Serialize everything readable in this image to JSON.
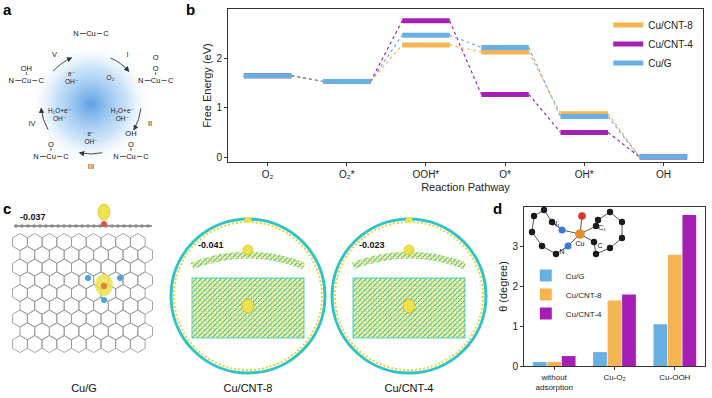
{
  "chart_data": [
    {
      "title": "b",
      "type": "line",
      "line_style": "dotted",
      "categories": [
        "O₂",
        "O₂*",
        "OOH*",
        "O*",
        "OH*",
        "OH"
      ],
      "series": [
        {
          "name": "Cu/CNT-8",
          "color": "#f5b452",
          "values": [
            1.65,
            1.53,
            2.27,
            2.13,
            0.88,
            0
          ]
        },
        {
          "name": "Cu/CNT-4",
          "color": "#a61fb5",
          "values": [
            1.65,
            1.53,
            2.76,
            1.27,
            0.5,
            0
          ]
        },
        {
          "name": "Cu/G",
          "color": "#68b0e4",
          "values": [
            1.65,
            1.53,
            2.47,
            2.22,
            0.82,
            0
          ]
        }
      ],
      "x_label": "Reaction Pathway",
      "y_label": "Free Energy (eV)",
      "ylim": [
        -0.1,
        3.0
      ],
      "yticks": [
        0,
        1,
        2
      ],
      "legend": "top right",
      "grid": false
    },
    {
      "title": "d",
      "type": "bar",
      "categories": [
        "without adsorption",
        "Cu-O₂",
        "Cu-OOH"
      ],
      "series": [
        {
          "name": "Cu/G",
          "color": "#68b0e4",
          "values": [
            0.1,
            0.35,
            1.05
          ]
        },
        {
          "name": "Cu/CNT-8",
          "color": "#f5b452",
          "values": [
            0.1,
            1.65,
            2.8
          ]
        },
        {
          "name": "Cu/CNT-4",
          "color": "#a61fb5",
          "values": [
            0.25,
            1.8,
            3.8
          ]
        }
      ],
      "y_label": "θ (degree)",
      "ylim": [
        0,
        4
      ],
      "yticks": [
        0,
        1,
        2,
        3
      ],
      "legend": "middle left",
      "grid": false
    }
  ],
  "diagrams": {
    "a": {
      "title": "a",
      "nodes": [
        {
          "atoms": [
            "N",
            "Cu",
            "C"
          ]
        },
        {
          "atoms": [
            "N",
            "Cu",
            "C"
          ],
          "adsorbate": [
            "O",
            "O"
          ]
        },
        {
          "atoms": [
            "N",
            "Cu",
            "C"
          ],
          "adsorbate": [
            "OH",
            "O"
          ]
        },
        {
          "atoms": [
            "N",
            "Cu",
            "C"
          ],
          "adsorbate": [
            "O"
          ]
        },
        {
          "atoms": [
            "N",
            "Cu",
            "C"
          ],
          "adsorbate": [
            "OH"
          ]
        }
      ],
      "steps": [
        {
          "numeral": "I",
          "species": [
            "O₂"
          ]
        },
        {
          "numeral": "II",
          "species": [
            "H₂O+e⁻",
            "OH⁻"
          ]
        },
        {
          "numeral": "III",
          "species": [
            "e⁻",
            "OH⁻"
          ]
        },
        {
          "numeral": "IV",
          "species": [
            "H₂O+e⁻",
            "OH⁻"
          ]
        },
        {
          "numeral": "V",
          "species": [
            "e⁻",
            "OH⁻"
          ]
        }
      ]
    },
    "c": {
      "title": "c",
      "items": [
        {
          "label": "Cu/G",
          "charge": -0.037
        },
        {
          "label": "Cu/CNT-8",
          "charge": -0.041
        },
        {
          "label": "Cu/CNT-4",
          "charge": -0.023
        }
      ]
    },
    "d_inset": {
      "atoms": [
        "N₁",
        "Cu",
        "C₁",
        "N",
        "C"
      ]
    }
  }
}
